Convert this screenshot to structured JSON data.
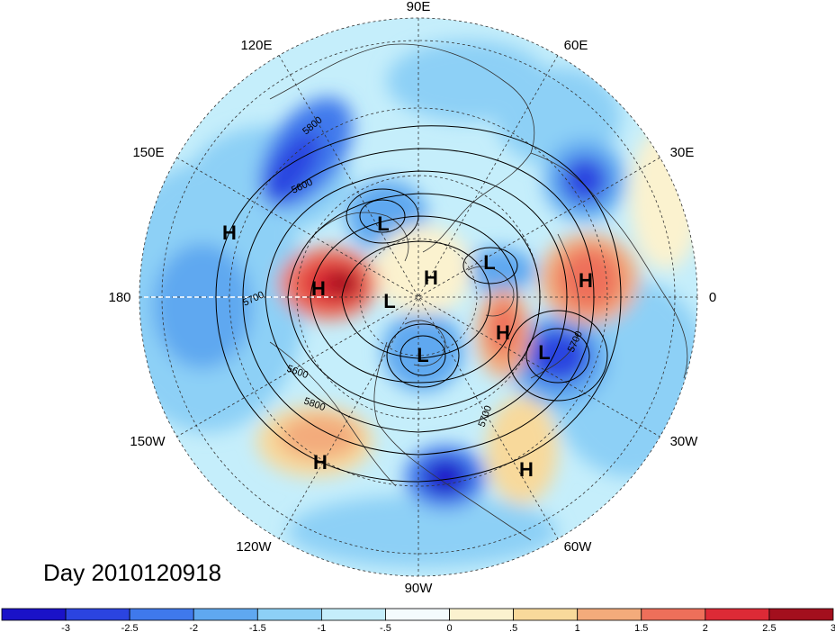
{
  "map": {
    "longitude_labels": [
      {
        "key": "90E",
        "text": "90E"
      },
      {
        "key": "60E",
        "text": "60E"
      },
      {
        "key": "30E",
        "text": "30E"
      },
      {
        "key": "0",
        "text": "0"
      },
      {
        "key": "30W",
        "text": "30W"
      },
      {
        "key": "60W",
        "text": "60W"
      },
      {
        "key": "90W",
        "text": "90W"
      },
      {
        "key": "120W",
        "text": "120W"
      },
      {
        "key": "150W",
        "text": "150W"
      },
      {
        "key": "180",
        "text": "180"
      },
      {
        "key": "150E",
        "text": "150E"
      },
      {
        "key": "120E",
        "text": "120E"
      }
    ],
    "pressure_centers": [
      {
        "key": "h_eurasia",
        "text": "H"
      },
      {
        "key": "h_siberia",
        "text": "H"
      },
      {
        "key": "h_pacific",
        "text": "H"
      },
      {
        "key": "h_arctic",
        "text": "H"
      },
      {
        "key": "h_greenland",
        "text": "H"
      },
      {
        "key": "h_baja",
        "text": "H"
      },
      {
        "key": "h_atlantic",
        "text": "H"
      },
      {
        "key": "l_okhotsk",
        "text": "L"
      },
      {
        "key": "l_scandinavia",
        "text": "L"
      },
      {
        "key": "l_alaska",
        "text": "L"
      },
      {
        "key": "l_hudson",
        "text": "L"
      },
      {
        "key": "l_atlantic",
        "text": "L"
      }
    ],
    "contour_labels": [
      {
        "key": "c5800a",
        "text": "5800"
      },
      {
        "key": "c5600a",
        "text": "5600"
      },
      {
        "key": "c5700a",
        "text": "5700"
      },
      {
        "key": "c5600b",
        "text": "5600"
      },
      {
        "key": "c5800b",
        "text": "5800"
      },
      {
        "key": "c5700b",
        "text": "5700"
      },
      {
        "key": "c5700c",
        "text": "5700"
      }
    ],
    "day_label": "Day 2010120918"
  },
  "colorbar": {
    "tick_labels": [
      "-3",
      "-2.5",
      "-2",
      "-1.5",
      "-1",
      "-.5",
      "0",
      ".5",
      "1",
      "1.5",
      "2",
      "2.5",
      "3"
    ],
    "colors": [
      "#1a12c8",
      "#2b44e0",
      "#3f79ec",
      "#5fa8f0",
      "#8dd0f6",
      "#c5eefb",
      "#f4fbfd",
      "#fbf2cf",
      "#f8d99b",
      "#f3ab7b",
      "#ee6f5a",
      "#dd2a36",
      "#a30f1d"
    ]
  }
}
